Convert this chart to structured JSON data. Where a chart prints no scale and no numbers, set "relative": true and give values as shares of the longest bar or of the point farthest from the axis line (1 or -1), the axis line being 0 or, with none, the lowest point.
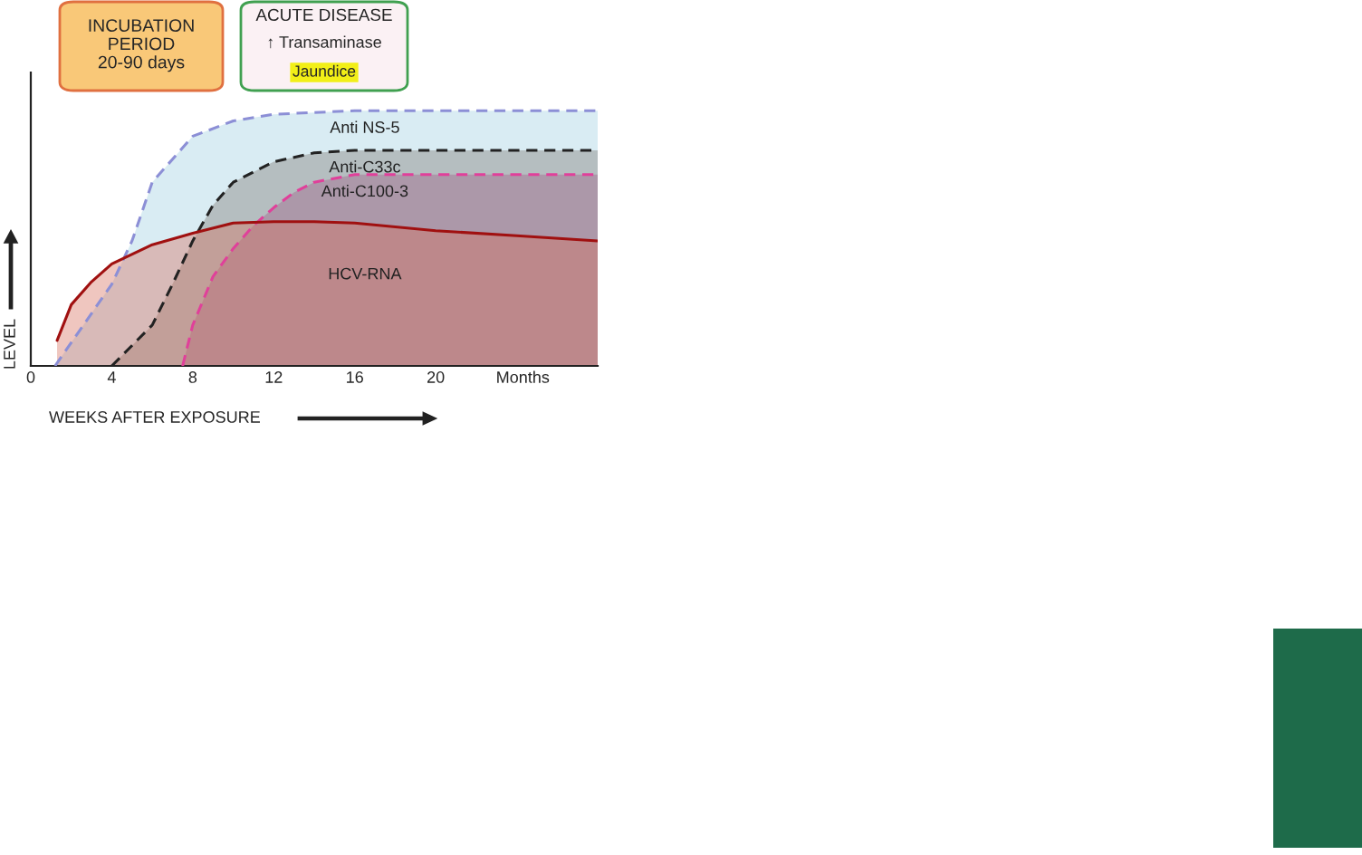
{
  "chart_data": {
    "type": "area",
    "relative": true,
    "xlim": [
      0,
      28
    ],
    "xticks": [
      0,
      4,
      8,
      12,
      16,
      20,
      {
        "value": 24.3,
        "label": "Months"
      }
    ],
    "tick_labels": "x",
    "xlabel": "WEEKS AFTER EXPOSURE",
    "ylabel": "LEVEL",
    "annotations": [
      "INCUBATION\nPERIOD\n20-90 days",
      "ACUTE DISEASE",
      "↑ Transaminase",
      "Jaundice"
    ],
    "series": [
      {
        "name": "Anti NS-5",
        "color": "#8c8fd6",
        "line_style": "dashed",
        "x": [
          1.2,
          4,
          5,
          6,
          8,
          10,
          12,
          16,
          28
        ],
        "values": [
          0,
          0.32,
          0.49,
          0.72,
          0.9,
          0.96,
          0.986,
          1,
          1
        ]
      },
      {
        "name": "Anti-C33c",
        "color": "#222222",
        "line_style": "dashed",
        "x": [
          4,
          6,
          7,
          8,
          9,
          10,
          12,
          14,
          16,
          28
        ],
        "values": [
          0,
          0.16,
          0.32,
          0.49,
          0.63,
          0.72,
          0.8,
          0.835,
          0.845,
          0.845
        ]
      },
      {
        "name": "Anti-C100-3",
        "color": "#e0409a",
        "line_style": "dashed",
        "x": [
          7.5,
          8,
          9,
          10,
          11,
          12,
          13,
          14,
          16,
          28
        ],
        "values": [
          0,
          0.16,
          0.35,
          0.46,
          0.55,
          0.62,
          0.68,
          0.72,
          0.75,
          0.75
        ]
      },
      {
        "name": "HCV-RNA",
        "color": "#a01010",
        "line_style": "solid",
        "x": [
          1.3,
          2,
          3,
          4,
          6,
          8,
          10,
          12,
          14,
          16,
          20,
          24,
          28
        ],
        "values": [
          0.1,
          0.24,
          0.33,
          0.4,
          0.475,
          0.52,
          0.56,
          0.565,
          0.565,
          0.56,
          0.53,
          0.51,
          0.49
        ]
      }
    ]
  }
}
